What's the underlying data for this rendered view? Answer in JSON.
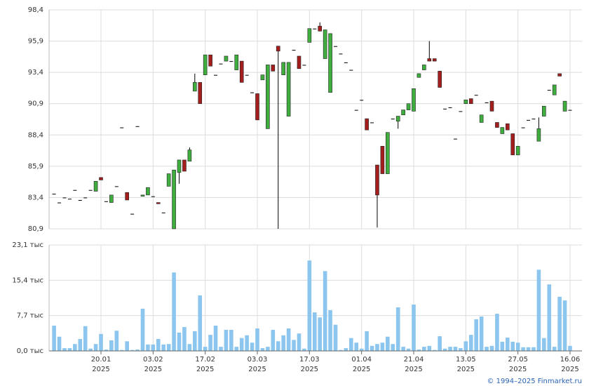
{
  "chart_data": [
    {
      "type": "candlestick",
      "open": [
        83.7,
        83.0,
        83.4,
        83.3,
        84.0,
        83.2,
        83.4,
        84.0,
        83.9,
        85.0,
        83.1,
        83.0,
        84.3,
        89.0,
        83.8,
        82.1,
        89.1,
        83.5,
        83.6,
        83.5,
        83.0,
        82.2,
        84.3,
        80.9,
        85.4,
        86.4,
        86.3,
        91.9,
        92.6,
        93.2,
        94.8,
        93.2,
        94.1,
        94.3,
        94.3,
        93.6,
        94.3,
        93.2,
        91.8,
        91.7,
        92.8,
        88.9,
        94.0,
        95.5,
        93.2,
        89.9,
        95.2,
        94.7,
        94.0,
        95.8,
        96.9,
        97.1,
        94.5,
        91.8,
        95.5,
        94.9,
        94.2,
        93.6,
        90.4,
        91.2,
        89.7,
        89.4,
        86.0,
        87.5,
        85.3,
        89.7,
        89.5,
        90.0,
        90.4,
        90.3,
        93.0,
        93.6,
        94.5,
        94.5,
        93.5,
        90.5,
        90.6,
        88.1,
        90.3,
        90.9,
        91.3,
        91.6,
        89.4,
        91.0,
        91.1,
        89.4,
        88.5,
        89.3,
        88.5,
        86.8,
        89.0,
        89.6,
        89.7,
        87.9,
        89.9,
        92.0,
        91.6,
        93.3,
        90.3,
        90.4
      ],
      "high": [
        83.7,
        83.0,
        83.4,
        83.3,
        84.0,
        83.2,
        83.4,
        84.0,
        84.7,
        85.0,
        83.1,
        83.6,
        84.3,
        89.0,
        83.8,
        82.1,
        89.1,
        83.6,
        84.2,
        83.5,
        83.0,
        82.2,
        85.3,
        85.6,
        86.4,
        86.4,
        87.4,
        93.3,
        92.6,
        94.8,
        94.8,
        93.2,
        94.1,
        94.7,
        94.3,
        94.8,
        94.3,
        93.2,
        91.8,
        91.7,
        93.2,
        94.0,
        94.0,
        95.5,
        94.2,
        94.2,
        95.2,
        94.7,
        94.0,
        96.9,
        96.9,
        97.4,
        96.8,
        96.5,
        95.5,
        94.9,
        94.2,
        93.6,
        90.4,
        91.2,
        89.7,
        89.4,
        86.0,
        87.5,
        88.6,
        89.7,
        89.9,
        90.4,
        90.9,
        92.1,
        93.3,
        94.0,
        95.9,
        94.5,
        93.5,
        90.5,
        90.6,
        88.1,
        90.3,
        91.2,
        91.3,
        91.6,
        90.0,
        91.0,
        91.1,
        89.4,
        89.0,
        89.3,
        88.5,
        87.5,
        89.0,
        89.6,
        89.7,
        89.8,
        90.7,
        92.0,
        92.4,
        93.3,
        91.1,
        90.4
      ],
      "low": [
        83.7,
        83.0,
        83.4,
        83.3,
        84.0,
        83.2,
        83.4,
        84.0,
        83.9,
        84.8,
        83.1,
        83.0,
        84.3,
        89.0,
        83.2,
        82.1,
        89.1,
        83.5,
        83.6,
        83.5,
        82.9,
        82.2,
        84.3,
        80.9,
        84.5,
        85.5,
        86.3,
        91.9,
        90.9,
        93.2,
        93.9,
        93.2,
        94.1,
        94.3,
        94.3,
        93.6,
        92.6,
        93.2,
        91.8,
        89.6,
        92.8,
        88.9,
        93.5,
        80.9,
        93.2,
        89.9,
        95.2,
        93.7,
        94.0,
        95.8,
        96.9,
        96.7,
        94.5,
        91.8,
        95.5,
        94.9,
        94.2,
        93.6,
        90.4,
        91.2,
        88.8,
        89.4,
        81.0,
        85.3,
        85.3,
        89.7,
        88.9,
        90.0,
        90.4,
        90.3,
        93.0,
        93.6,
        94.3,
        94.3,
        92.2,
        90.5,
        90.6,
        88.1,
        90.3,
        90.9,
        90.9,
        91.6,
        89.4,
        91.0,
        90.3,
        89.0,
        88.5,
        88.8,
        86.8,
        86.8,
        89.0,
        89.6,
        89.7,
        87.9,
        89.9,
        92.0,
        91.6,
        93.1,
        90.3,
        90.4
      ],
      "close": [
        83.7,
        83.0,
        83.4,
        83.3,
        84.0,
        83.2,
        83.4,
        84.0,
        84.7,
        84.8,
        83.1,
        83.6,
        84.3,
        89.0,
        83.2,
        82.1,
        89.1,
        83.6,
        84.2,
        83.5,
        82.9,
        82.2,
        85.3,
        85.6,
        86.4,
        85.5,
        87.2,
        92.6,
        90.9,
        94.8,
        93.9,
        93.2,
        94.1,
        94.7,
        94.3,
        94.8,
        92.6,
        93.2,
        91.8,
        89.6,
        93.2,
        94.0,
        93.5,
        95.1,
        94.2,
        94.2,
        95.2,
        93.7,
        94.0,
        96.9,
        96.9,
        96.7,
        96.8,
        96.5,
        95.5,
        94.9,
        94.2,
        93.6,
        90.4,
        91.2,
        88.8,
        89.4,
        83.6,
        85.3,
        88.6,
        89.7,
        89.9,
        90.4,
        90.9,
        92.1,
        93.3,
        94.0,
        94.3,
        94.3,
        92.2,
        90.5,
        90.6,
        88.1,
        90.3,
        91.2,
        90.9,
        91.6,
        90.0,
        91.0,
        90.3,
        89.0,
        89.0,
        88.8,
        86.8,
        87.5,
        89.0,
        89.6,
        89.7,
        88.9,
        90.7,
        92.0,
        92.4,
        93.1,
        91.1,
        90.4
      ],
      "up_color": "#3fae3f",
      "down_color": "#a51e1e",
      "flat_color": "#000000",
      "ylim": [
        80.9,
        98.4
      ],
      "yticks": [
        {
          "value": 80.9,
          "label": "80,9"
        },
        {
          "value": 83.4,
          "label": "83,4"
        },
        {
          "value": 85.9,
          "label": "85,9"
        },
        {
          "value": 88.4,
          "label": "88,4"
        },
        {
          "value": 90.9,
          "label": "90,9"
        },
        {
          "value": 93.4,
          "label": "93,4"
        },
        {
          "value": 95.9,
          "label": "95,9"
        },
        {
          "value": 98.4,
          "label": "98,4"
        }
      ],
      "grid": true
    },
    {
      "type": "bar",
      "categories": [
        null,
        null,
        null,
        null,
        null,
        null,
        null,
        null,
        null,
        "20.01\n2025",
        null,
        null,
        null,
        null,
        null,
        null,
        null,
        null,
        null,
        "03.02\n2025",
        null,
        null,
        null,
        null,
        null,
        null,
        null,
        null,
        null,
        "17.02\n2025",
        null,
        null,
        null,
        null,
        null,
        null,
        null,
        null,
        null,
        "03.03\n2025",
        null,
        null,
        null,
        null,
        null,
        null,
        null,
        null,
        null,
        "17.03\n2025",
        null,
        null,
        null,
        null,
        null,
        null,
        null,
        null,
        null,
        "01.04\n2025",
        null,
        null,
        null,
        null,
        null,
        null,
        null,
        null,
        null,
        "21.04\n2025",
        null,
        null,
        null,
        null,
        null,
        null,
        null,
        null,
        null,
        "13.05\n2025",
        null,
        null,
        null,
        null,
        null,
        null,
        null,
        null,
        null,
        "27.05\n2025",
        null,
        null,
        null,
        null,
        null,
        null,
        null,
        null,
        null,
        "16.06\n2025"
      ],
      "values": [
        5.5,
        3.1,
        0.6,
        0.6,
        1.5,
        2.6,
        5.4,
        0.5,
        1.5,
        3.7,
        0.3,
        2.3,
        4.4,
        0.2,
        2.1,
        0.2,
        0.3,
        9.2,
        1.4,
        1.4,
        2.6,
        1.4,
        1.5,
        17.1,
        4.0,
        5.2,
        1.5,
        4.3,
        12.1,
        0.9,
        3.5,
        5.5,
        0.9,
        4.6,
        4.6,
        0.9,
        2.8,
        3.4,
        1.8,
        4.9,
        0.6,
        0.9,
        4.6,
        2.1,
        3.4,
        4.9,
        2.4,
        3.8,
        0.5,
        19.7,
        8.4,
        7.3,
        17.4,
        8.9,
        5.7,
        0.2,
        0.6,
        2.8,
        1.8,
        0.5,
        4.3,
        1.1,
        1.5,
        1.8,
        3.1,
        1.5,
        9.5,
        0.9,
        0.5,
        10.1,
        0.3,
        0.9,
        1.1,
        0.2,
        3.2,
        0.5,
        0.9,
        0.9,
        0.6,
        2.1,
        3.5,
        6.9,
        7.5,
        0.9,
        1.1,
        8.1,
        2.0,
        2.9,
        2.0,
        1.8,
        0.8,
        0.8,
        0.8,
        17.7,
        2.8,
        14.5,
        0.9,
        11.8,
        11.0,
        1.1
      ],
      "color": "#8cc6ee",
      "ylim": [
        0,
        23.1
      ],
      "yticks": [
        {
          "value": 0,
          "label": "0,0 тыс"
        },
        {
          "value": 7.7,
          "label": "7,7 тыс"
        },
        {
          "value": 15.4,
          "label": "15,4 тыс"
        },
        {
          "value": 23.1,
          "label": "23,1 тыс"
        }
      ],
      "grid": true
    }
  ],
  "credit": "© 1994–2025 Finmarket.ru"
}
